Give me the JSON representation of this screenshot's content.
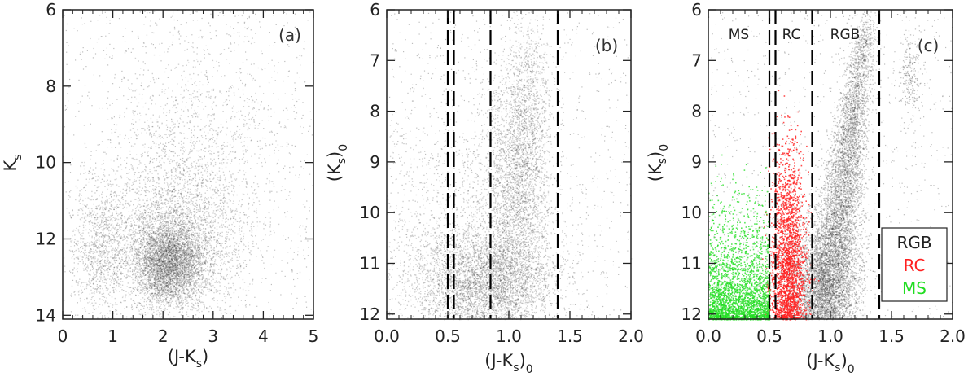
{
  "chart_data": [
    {
      "type": "scatter",
      "panel": "(a)",
      "title": "",
      "xlabel": "(J-K",
      "xlabel_sub": "s",
      "xlabel_tail": ")",
      "ylabel": "K",
      "ylabel_sub": "s",
      "ylabel_tail": "",
      "xlim": [
        0,
        5
      ],
      "ylim": [
        14.1,
        6
      ],
      "xticks": [
        0,
        1,
        2,
        3,
        4,
        5
      ],
      "xtick_labels": [
        "0",
        "1",
        "2",
        "3",
        "4",
        "5"
      ],
      "yticks": [
        6,
        8,
        10,
        12,
        14
      ],
      "ytick_labels": [
        "6",
        "8",
        "10",
        "12",
        "14"
      ],
      "vlines": [],
      "series": [
        {
          "color": "#333333",
          "density_components": [
            {
              "x": 2.1,
              "y": 12.6,
              "sx": 0.35,
              "sy": 0.55,
              "w": 0.45
            },
            {
              "x": 2.3,
              "y": 11.9,
              "sx": 0.7,
              "sy": 1.1,
              "w": 0.3
            },
            {
              "x": 0.75,
              "y": 12.2,
              "sx": 0.3,
              "sy": 0.9,
              "w": 0.12
            },
            {
              "x": 2.6,
              "y": 9.5,
              "sx": 0.9,
              "sy": 1.6,
              "w": 0.13
            }
          ]
        }
      ]
    },
    {
      "type": "scatter",
      "panel": "(b)",
      "title": "",
      "xlabel": "(J-K",
      "xlabel_sub": "s",
      "xlabel_tail": ")",
      "xlabel_sub2": "0",
      "ylabel": "(K",
      "ylabel_sub": "s",
      "ylabel_tail": ")",
      "ylabel_sub2": "0",
      "xlim": [
        0,
        2.0
      ],
      "ylim": [
        12.1,
        6
      ],
      "xticks": [
        0,
        0.5,
        1.0,
        1.5,
        2.0
      ],
      "xtick_labels": [
        "0.0",
        "0.5",
        "1.0",
        "1.5",
        "2.0"
      ],
      "yticks": [
        6,
        7,
        8,
        9,
        10,
        11,
        12
      ],
      "ytick_labels": [
        "6",
        "7",
        "8",
        "9",
        "10",
        "11",
        "12"
      ],
      "vlines": [
        0.5,
        0.55,
        0.85,
        1.4
      ],
      "series": [
        {
          "color": "#333333",
          "density_components": [
            {
              "x": 0.8,
              "y": 11.4,
              "sx": 0.28,
              "sy": 0.55,
              "w": 0.45
            },
            {
              "x": 1.05,
              "y": 9.6,
              "sx": 0.13,
              "sy": 1.1,
              "w": 0.25
            },
            {
              "x": 1.15,
              "y": 8.0,
              "sx": 0.1,
              "sy": 1.0,
              "w": 0.12
            },
            {
              "x": 0.6,
              "y": 10.5,
              "sx": 0.4,
              "sy": 1.5,
              "w": 0.18
            }
          ]
        }
      ]
    },
    {
      "type": "scatter",
      "panel": "(c)",
      "title": "",
      "xlabel": "(J-K",
      "xlabel_sub": "s",
      "xlabel_tail": ")",
      "xlabel_sub2": "0",
      "ylabel": "(K",
      "ylabel_sub": "s",
      "ylabel_tail": ")",
      "ylabel_sub2": "0",
      "xlim": [
        0,
        2.0
      ],
      "ylim": [
        12.1,
        6
      ],
      "xticks": [
        0,
        0.5,
        1.0,
        1.5,
        2.0
      ],
      "xtick_labels": [
        "0.0",
        "0.5",
        "1.0",
        "1.5",
        "2.0"
      ],
      "yticks": [
        6,
        7,
        8,
        9,
        10,
        11,
        12
      ],
      "ytick_labels": [
        "6",
        "7",
        "8",
        "9",
        "10",
        "11",
        "12"
      ],
      "vlines": [
        0.5,
        0.55,
        0.85,
        1.4
      ],
      "region_labels": [
        {
          "text": "MS",
          "x": 0.25
        },
        {
          "text": "RC",
          "x": 0.68
        },
        {
          "text": "RGB",
          "x": 1.12
        }
      ],
      "legend": {
        "position": "lower-right",
        "entries": [
          {
            "name": "RGB",
            "color": "#222222"
          },
          {
            "name": "RC",
            "color": "#ff2020"
          },
          {
            "name": "MS",
            "color": "#22dd22"
          }
        ]
      },
      "series": [
        {
          "name": "RGB",
          "color": "#333333",
          "ridge": {
            "x_at_top": 1.3,
            "x_at_bottom": 0.95,
            "y_top": 6.0,
            "y_bottom": 12.1,
            "sx": 0.07
          },
          "clump": {
            "x": 1.65,
            "y": 7.3,
            "sx": 0.05,
            "sy": 0.4
          }
        },
        {
          "name": "RC",
          "color": "#ff2020",
          "center_x": 0.65,
          "sx": 0.07,
          "y_range": [
            7.5,
            12.1
          ]
        },
        {
          "name": "MS",
          "color": "#22dd22",
          "x_range": [
            0.0,
            0.5
          ],
          "y_range": [
            8.5,
            12.1
          ]
        }
      ]
    }
  ]
}
